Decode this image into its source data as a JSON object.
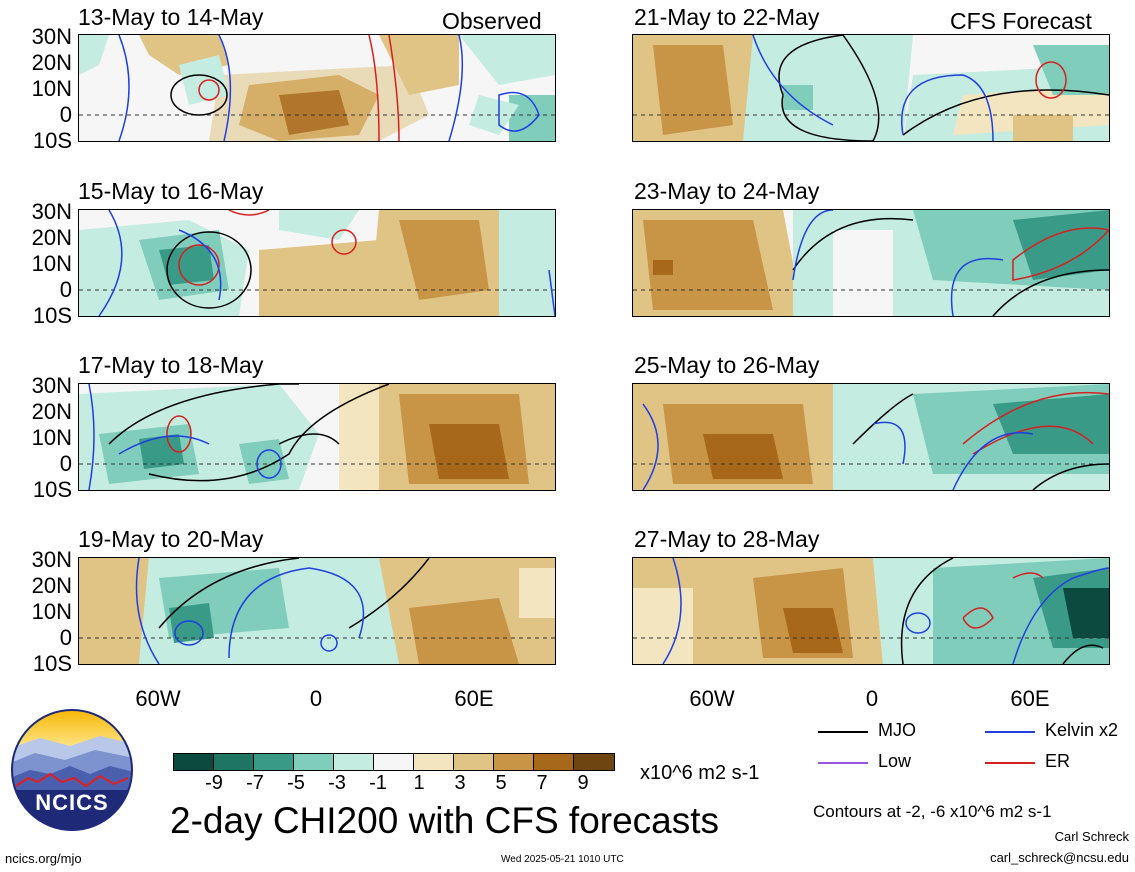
{
  "panels": {
    "left": [
      {
        "title": "13-May to 14-May",
        "tag": "Observed"
      },
      {
        "title": "15-May to 16-May",
        "tag": ""
      },
      {
        "title": "17-May to 18-May",
        "tag": ""
      },
      {
        "title": "19-May to 20-May",
        "tag": ""
      }
    ],
    "right": [
      {
        "title": "21-May to 22-May",
        "tag": "CFS Forecast"
      },
      {
        "title": "23-May to 24-May",
        "tag": ""
      },
      {
        "title": "25-May to 26-May",
        "tag": ""
      },
      {
        "title": "27-May to 28-May",
        "tag": ""
      }
    ]
  },
  "axes": {
    "lat_labels": [
      "30N",
      "20N",
      "10N",
      "0",
      "10S"
    ],
    "lon_labels": [
      "60W",
      "0",
      "60E"
    ]
  },
  "colorbar": {
    "colors": [
      "#0c4a40",
      "#1f7564",
      "#3a9a88",
      "#80cdbb",
      "#c4ece0",
      "#f6f6f6",
      "#f3e5c0",
      "#e0c485",
      "#c89446",
      "#a8681c",
      "#6e4410"
    ],
    "labels": [
      "-9",
      "-7",
      "-5",
      "-3",
      "-1",
      "1",
      "3",
      "5",
      "7",
      "9"
    ],
    "units": "x10^6 m2 s-1"
  },
  "legend": {
    "items": [
      {
        "label": "MJO",
        "color": "#000000"
      },
      {
        "label": "Kelvin x2",
        "color": "#1f3fe0"
      },
      {
        "label": "Low",
        "color": "#9a55e0"
      },
      {
        "label": "ER",
        "color": "#d42020"
      }
    ],
    "contours_note": "Contours at -2, -6 x10^6 m2 s-1"
  },
  "footer": {
    "main_title": "2-day CHI200 with CFS forecasts",
    "logo_text": "NCICS",
    "url": "ncics.org/mjo",
    "timestamp": "Wed 2025-05-21 1010 UTC",
    "author": "Carl Schreck",
    "email": "carl_schreck@ncsu.edu"
  }
}
